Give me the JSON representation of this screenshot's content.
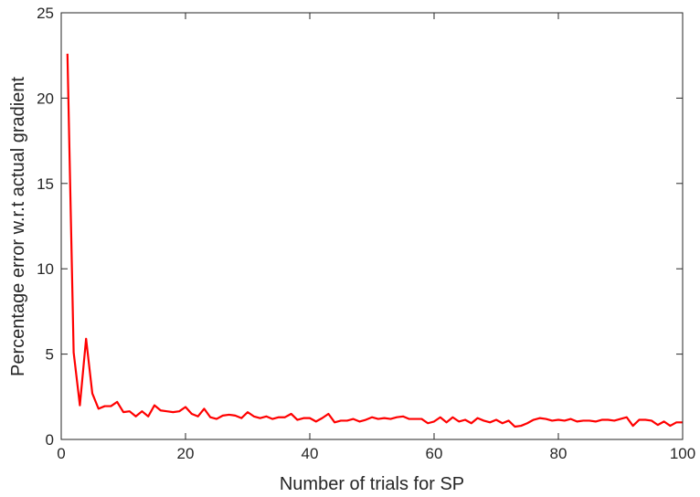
{
  "chart_data": {
    "type": "line",
    "title": "",
    "xlabel": "Number of trials for SP",
    "ylabel": "Percentage error w.r.t actual gradient",
    "xlim": [
      0,
      100
    ],
    "ylim": [
      0,
      25
    ],
    "xticks": [
      0,
      20,
      40,
      60,
      80,
      100
    ],
    "yticks": [
      0,
      5,
      10,
      15,
      20,
      25
    ],
    "grid": false,
    "box": true,
    "series": [
      {
        "color": "#ff0000",
        "x": [
          1,
          2,
          3,
          4,
          5,
          6,
          7,
          8,
          9,
          10,
          11,
          12,
          13,
          14,
          15,
          16,
          17,
          18,
          19,
          20,
          21,
          22,
          23,
          24,
          25,
          26,
          27,
          28,
          29,
          30,
          31,
          32,
          33,
          34,
          35,
          36,
          37,
          38,
          39,
          40,
          41,
          42,
          43,
          44,
          45,
          46,
          47,
          48,
          49,
          50,
          51,
          52,
          53,
          54,
          55,
          56,
          57,
          58,
          59,
          60,
          61,
          62,
          63,
          64,
          65,
          66,
          67,
          68,
          69,
          70,
          71,
          72,
          73,
          74,
          75,
          76,
          77,
          78,
          79,
          80,
          81,
          82,
          83,
          84,
          85,
          86,
          87,
          88,
          89,
          90,
          91,
          92,
          93,
          94,
          95,
          96,
          97,
          98,
          99,
          100
        ],
        "y": [
          22.6,
          5.1,
          2.0,
          5.9,
          2.7,
          1.8,
          1.95,
          1.95,
          2.2,
          1.6,
          1.65,
          1.35,
          1.65,
          1.35,
          2.0,
          1.7,
          1.65,
          1.6,
          1.65,
          1.9,
          1.5,
          1.35,
          1.8,
          1.3,
          1.2,
          1.4,
          1.45,
          1.4,
          1.25,
          1.6,
          1.35,
          1.25,
          1.35,
          1.2,
          1.3,
          1.3,
          1.5,
          1.15,
          1.25,
          1.25,
          1.05,
          1.25,
          1.5,
          1.0,
          1.1,
          1.1,
          1.2,
          1.05,
          1.15,
          1.3,
          1.2,
          1.25,
          1.2,
          1.3,
          1.35,
          1.2,
          1.2,
          1.2,
          0.95,
          1.05,
          1.3,
          1.0,
          1.3,
          1.05,
          1.15,
          0.95,
          1.25,
          1.1,
          1.0,
          1.15,
          0.95,
          1.1,
          0.75,
          0.8,
          0.95,
          1.15,
          1.25,
          1.2,
          1.1,
          1.15,
          1.1,
          1.2,
          1.05,
          1.1,
          1.1,
          1.05,
          1.15,
          1.15,
          1.1,
          1.2,
          1.3,
          0.8,
          1.15,
          1.15,
          1.1,
          0.85,
          1.05,
          0.8,
          1.0,
          1.0
        ]
      }
    ]
  }
}
